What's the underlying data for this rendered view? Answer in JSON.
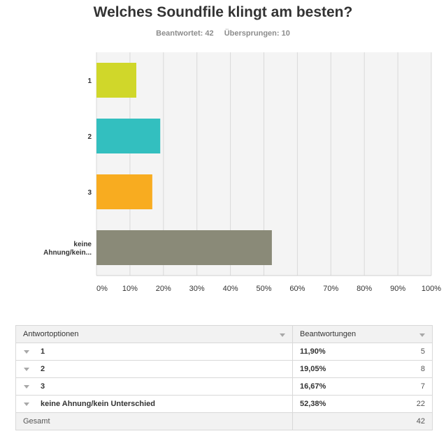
{
  "title": "Welches Soundfile klingt am besten?",
  "answered": "Beantwortet: 42",
  "skipped": "Übersprungen: 10",
  "chart_data": {
    "type": "bar",
    "orientation": "horizontal",
    "title": "Welches Soundfile klingt am besten?",
    "categories": [
      "1",
      "2",
      "3",
      "keine Ahnung/kein..."
    ],
    "values": [
      11.9,
      19.05,
      16.67,
      52.38
    ],
    "colors": [
      "#d0d72a",
      "#33bfbf",
      "#f8ac20",
      "#8a8a78"
    ],
    "xlim": [
      0,
      100
    ],
    "xticks": [
      "0%",
      "10%",
      "20%",
      "30%",
      "40%",
      "50%",
      "60%",
      "70%",
      "80%",
      "90%",
      "100%"
    ],
    "grid": true
  },
  "table": {
    "header_options": "Antwortoptionen",
    "header_responses": "Beantwortungen",
    "rows": [
      {
        "label": "1",
        "percent": "11,90%",
        "count": "5"
      },
      {
        "label": "2",
        "percent": "19,05%",
        "count": "8"
      },
      {
        "label": "3",
        "percent": "16,67%",
        "count": "7"
      },
      {
        "label": "keine Ahnung/kein Unterschied",
        "percent": "52,38%",
        "count": "22"
      }
    ],
    "total_label": "Gesamt",
    "total_count": "42"
  }
}
